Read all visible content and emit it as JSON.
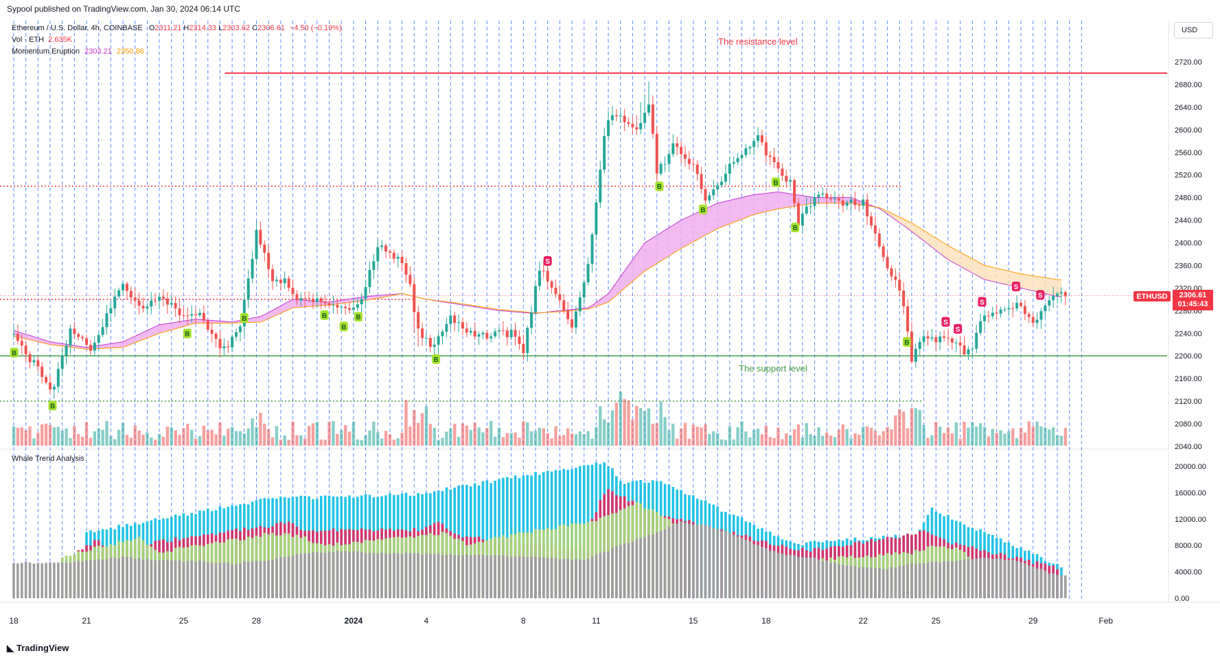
{
  "header": {
    "published_by": "Sypool published on TradingView.com, Jan 30, 2024 06:14 UTC",
    "symbol": "Ethereum / U.S. Dollar, 4h, COINBASE",
    "ohlc": {
      "o_label": "O",
      "o": "2311.21",
      "h_label": "H",
      "h": "2314.33",
      "l_label": "L",
      "l": "2303.62",
      "c_label": "C",
      "c": "2306.61",
      "change": "−4.50 (−0.19%)"
    },
    "vol": {
      "label": "Vol · ETH",
      "value": "2.635K"
    },
    "indicator": {
      "name": "Momentum Eruption",
      "v1": "2303.21",
      "v2": "2350.86"
    }
  },
  "currency_button": "USD",
  "ticker_tag": "ETHUSD",
  "price_tag": {
    "price": "2306.61",
    "countdown": "01:45:43"
  },
  "annotations": {
    "resistance": "The resistance level",
    "support": "The support level"
  },
  "lower_pane_title": "Whale Trend Analysis",
  "brand": "TradingView",
  "colors": {
    "up": "#26a69a",
    "down": "#ef5350",
    "resistance": "#f23645",
    "support": "#43a047",
    "ema_fill_bull": "#f0b3f0",
    "ema_fill_bear": "#fde3c0",
    "whale_gray": "#9e9e9e",
    "whale_green": "#a5d27a",
    "whale_red": "#d6336c",
    "whale_cyan": "#22c3e6",
    "buy_badge": "#a6e22e",
    "sell_badge": "#e91e63"
  },
  "chart_data": [
    {
      "type": "candlestick",
      "name": "ETHUSD 4h",
      "y_ticks": [
        "2720.00",
        "2680.00",
        "2640.00",
        "2600.00",
        "2560.00",
        "2520.00",
        "2480.00",
        "2440.00",
        "2400.00",
        "2360.00",
        "2320.00",
        "2280.00",
        "2240.00",
        "2200.00",
        "2160.00",
        "2120.00",
        "2080.00",
        "2040.00"
      ],
      "ylim": [
        2040,
        2740
      ],
      "x_ticks": [
        {
          "label": "18",
          "day": 0
        },
        {
          "label": "21",
          "day": 3
        },
        {
          "label": "25",
          "day": 7
        },
        {
          "label": "28",
          "day": 10
        },
        {
          "label": "2024",
          "day": 14
        },
        {
          "label": "4",
          "day": 17
        },
        {
          "label": "8",
          "day": 21
        },
        {
          "label": "11",
          "day": 24
        },
        {
          "label": "15",
          "day": 28
        },
        {
          "label": "18",
          "day": 31
        },
        {
          "label": "22",
          "day": 35
        },
        {
          "label": "25",
          "day": 38
        },
        {
          "label": "29",
          "day": 42
        },
        {
          "label": "Feb",
          "day": 45
        }
      ],
      "resistance_level": 2700,
      "support_level": 2200,
      "dotted_levels": [
        2500,
        2300,
        2120
      ],
      "anchors": [
        [
          0,
          2235
        ],
        [
          1.6,
          2140
        ],
        [
          2.3,
          2245
        ],
        [
          3.2,
          2215
        ],
        [
          4.5,
          2330
        ],
        [
          5.2,
          2280
        ],
        [
          6,
          2310
        ],
        [
          7,
          2265
        ],
        [
          7.6,
          2275
        ],
        [
          8.2,
          2240
        ],
        [
          8.6,
          2210
        ],
        [
          9.3,
          2245
        ],
        [
          10,
          2420
        ],
        [
          10.6,
          2340
        ],
        [
          11.2,
          2330
        ],
        [
          11.8,
          2295
        ],
        [
          12.8,
          2300
        ],
        [
          13.6,
          2280
        ],
        [
          14.3,
          2300
        ],
        [
          15,
          2395
        ],
        [
          16,
          2365
        ],
        [
          16.3,
          2330
        ],
        [
          16.6,
          2250
        ],
        [
          17.3,
          2215
        ],
        [
          18,
          2265
        ],
        [
          19,
          2235
        ],
        [
          20.5,
          2240
        ],
        [
          21,
          2210
        ],
        [
          21.7,
          2360
        ],
        [
          22.3,
          2310
        ],
        [
          23,
          2250
        ],
        [
          23.6,
          2340
        ],
        [
          24,
          2470
        ],
        [
          24.4,
          2620
        ],
        [
          25,
          2625
        ],
        [
          25.6,
          2600
        ],
        [
          26.2,
          2640
        ],
        [
          26.5,
          2520
        ],
        [
          27.2,
          2575
        ],
        [
          28,
          2535
        ],
        [
          28.5,
          2475
        ],
        [
          29.5,
          2535
        ],
        [
          30.7,
          2585
        ],
        [
          31.1,
          2550
        ],
        [
          32,
          2505
        ],
        [
          32.3,
          2430
        ],
        [
          32.8,
          2470
        ],
        [
          33.3,
          2485
        ],
        [
          34,
          2470
        ],
        [
          35,
          2470
        ],
        [
          35.5,
          2415
        ],
        [
          36.2,
          2340
        ],
        [
          36.6,
          2310
        ],
        [
          37,
          2195
        ],
        [
          37.5,
          2230
        ],
        [
          38.3,
          2230
        ],
        [
          38.9,
          2215
        ],
        [
          39.4,
          2205
        ],
        [
          39.8,
          2260
        ],
        [
          40.5,
          2280
        ],
        [
          41.3,
          2290
        ],
        [
          42,
          2260
        ],
        [
          42.6,
          2290
        ],
        [
          43,
          2315
        ],
        [
          43.3,
          2307
        ]
      ],
      "ema_fast_anchors": [
        [
          0,
          2245
        ],
        [
          1.5,
          2225
        ],
        [
          3,
          2215
        ],
        [
          4.5,
          2225
        ],
        [
          6,
          2255
        ],
        [
          7.5,
          2265
        ],
        [
          9,
          2260
        ],
        [
          10.2,
          2270
        ],
        [
          11.5,
          2300
        ],
        [
          13,
          2295
        ],
        [
          14.5,
          2305
        ],
        [
          16,
          2310
        ],
        [
          17,
          2300
        ],
        [
          18.5,
          2290
        ],
        [
          20,
          2280
        ],
        [
          21.5,
          2275
        ],
        [
          22.5,
          2280
        ],
        [
          23.7,
          2285
        ],
        [
          24.5,
          2310
        ],
        [
          26,
          2400
        ],
        [
          27.5,
          2440
        ],
        [
          29,
          2470
        ],
        [
          30.5,
          2485
        ],
        [
          31.5,
          2490
        ],
        [
          33,
          2480
        ],
        [
          34.5,
          2480
        ],
        [
          35.7,
          2460
        ],
        [
          37,
          2420
        ],
        [
          38.5,
          2370
        ],
        [
          40,
          2335
        ],
        [
          41.5,
          2320
        ],
        [
          43,
          2305
        ]
      ],
      "ema_slow_anchors": [
        [
          0,
          2235
        ],
        [
          1.5,
          2220
        ],
        [
          3,
          2212
        ],
        [
          4.5,
          2215
        ],
        [
          6,
          2240
        ],
        [
          7.5,
          2258
        ],
        [
          9,
          2258
        ],
        [
          10.2,
          2260
        ],
        [
          11.5,
          2285
        ],
        [
          13,
          2290
        ],
        [
          14.5,
          2298
        ],
        [
          16,
          2310
        ],
        [
          17,
          2300
        ],
        [
          18.5,
          2292
        ],
        [
          20,
          2282
        ],
        [
          21.5,
          2276
        ],
        [
          22.5,
          2278
        ],
        [
          23.7,
          2283
        ],
        [
          24.5,
          2295
        ],
        [
          26,
          2350
        ],
        [
          27.5,
          2390
        ],
        [
          29,
          2425
        ],
        [
          30.5,
          2450
        ],
        [
          31.5,
          2460
        ],
        [
          33,
          2470
        ],
        [
          34.5,
          2470
        ],
        [
          35.7,
          2462
        ],
        [
          37,
          2435
        ],
        [
          38.5,
          2395
        ],
        [
          40,
          2360
        ],
        [
          41.5,
          2345
        ],
        [
          43,
          2335
        ]
      ],
      "buy_signals": [
        0.02,
        1.6,
        7.15,
        9.5,
        12.8,
        13.6,
        14.2,
        17.4,
        26.6,
        28.4,
        31.4,
        32.2,
        36.8
      ],
      "sell_signals": [
        22.0,
        38.4,
        38.9,
        39.9,
        41.3,
        42.3
      ]
    },
    {
      "type": "bar",
      "name": "Whale Trend Analysis",
      "y_ticks": [
        "20000.00",
        "16000.00",
        "12000.00",
        "8000.00",
        "4000.00",
        "0.00"
      ],
      "ylim": [
        0,
        21000
      ],
      "gray_anchors": [
        [
          0,
          5400
        ],
        [
          1.5,
          5300
        ],
        [
          3,
          5600
        ],
        [
          4.5,
          6200
        ],
        [
          6,
          5700
        ],
        [
          7.5,
          5600
        ],
        [
          9,
          5200
        ],
        [
          10.5,
          5800
        ],
        [
          12,
          6800
        ],
        [
          13.5,
          7100
        ],
        [
          15,
          6900
        ],
        [
          16.5,
          6700
        ],
        [
          18,
          6600
        ],
        [
          19.5,
          6500
        ],
        [
          21,
          6300
        ],
        [
          22.5,
          6000
        ],
        [
          23.5,
          5800
        ],
        [
          25,
          8000
        ],
        [
          26.5,
          10000
        ],
        [
          27.5,
          11500
        ],
        [
          28.5,
          11000
        ],
        [
          29.5,
          10000
        ],
        [
          30.5,
          8200
        ],
        [
          31.5,
          6800
        ],
        [
          33,
          6000
        ],
        [
          34.5,
          4800
        ],
        [
          36,
          4500
        ],
        [
          37,
          5200
        ],
        [
          38.5,
          5600
        ],
        [
          40,
          6000
        ],
        [
          41,
          5900
        ],
        [
          42,
          4800
        ],
        [
          43,
          3400
        ],
        [
          43.8,
          3400
        ]
      ],
      "green_anchors": [
        [
          2,
          6200
        ],
        [
          3.6,
          7800
        ],
        [
          5.2,
          9200
        ],
        [
          6,
          7000
        ],
        [
          10.6,
          9800
        ],
        [
          11.8,
          9400
        ],
        [
          12.8,
          8000
        ],
        [
          16.8,
          9600
        ],
        [
          17.8,
          9800
        ],
        [
          18.6,
          8200
        ],
        [
          24.2,
          12000
        ],
        [
          25.6,
          14500
        ],
        [
          26.8,
          12300
        ],
        [
          27.6,
          10700
        ],
        [
          32,
          6200
        ],
        [
          33,
          5800
        ],
        [
          37,
          6900
        ],
        [
          38.1,
          8000
        ],
        [
          38.9,
          7500
        ],
        [
          39.5,
          6100
        ]
      ],
      "red_anchors": [
        [
          2.4,
          6400
        ],
        [
          3.4,
          8700
        ],
        [
          4,
          7500
        ],
        [
          10.6,
          11000
        ],
        [
          11.3,
          11500
        ],
        [
          12.0,
          10200
        ],
        [
          16.7,
          10400
        ],
        [
          17.5,
          11400
        ],
        [
          18.5,
          9400
        ],
        [
          23.3,
          7500
        ],
        [
          24.4,
          16500
        ],
        [
          25.4,
          14800
        ],
        [
          26.3,
          13000
        ],
        [
          32,
          7600
        ],
        [
          32.8,
          7300
        ],
        [
          36.8,
          9500
        ],
        [
          37.6,
          10400
        ],
        [
          38.4,
          8500
        ],
        [
          43.1,
          4500
        ]
      ],
      "cyan_anchors": [
        [
          2.9,
          9800
        ],
        [
          3.4,
          10200
        ],
        [
          10.6,
          15100
        ],
        [
          16.7,
          15800
        ],
        [
          24.4,
          20700
        ],
        [
          25.1,
          17500
        ],
        [
          26.6,
          17800
        ],
        [
          32.2,
          8200
        ],
        [
          37.2,
          9600
        ],
        [
          37.8,
          13500
        ],
        [
          43.2,
          4800
        ]
      ]
    }
  ]
}
